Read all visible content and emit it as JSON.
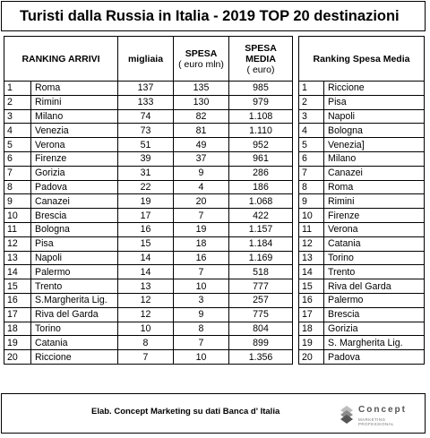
{
  "title": "Turisti dalla Russia in Italia - 2019  TOP 20 destinazioni",
  "left_table": {
    "headers": {
      "ranking": "RANKING ARRIVI",
      "migliaia": "migliaia",
      "spesa_l1": "SPESA",
      "spesa_l2": "( euro mln)",
      "media_l1": "SPESA",
      "media_l2": "MEDIA",
      "media_l3": "( euro)"
    },
    "rows": [
      {
        "rank": "1",
        "city": "Roma",
        "migliaia": "137",
        "spesa": "135",
        "media": "985"
      },
      {
        "rank": "2",
        "city": "Rimini",
        "migliaia": "133",
        "spesa": "130",
        "media": "979"
      },
      {
        "rank": "3",
        "city": "Milano",
        "migliaia": "74",
        "spesa": "82",
        "media": "1.108"
      },
      {
        "rank": "4",
        "city": "Venezia",
        "migliaia": "73",
        "spesa": "81",
        "media": "1.110"
      },
      {
        "rank": "5",
        "city": "Verona",
        "migliaia": "51",
        "spesa": "49",
        "media": "952"
      },
      {
        "rank": "6",
        "city": "Firenze",
        "migliaia": "39",
        "spesa": "37",
        "media": "961"
      },
      {
        "rank": "7",
        "city": "Gorizia",
        "migliaia": "31",
        "spesa": "9",
        "media": "286"
      },
      {
        "rank": "8",
        "city": "Padova",
        "migliaia": "22",
        "spesa": "4",
        "media": "186"
      },
      {
        "rank": "9",
        "city": "Canazei",
        "migliaia": "19",
        "spesa": "20",
        "media": "1.068"
      },
      {
        "rank": "10",
        "city": "Brescia",
        "migliaia": "17",
        "spesa": "7",
        "media": "422"
      },
      {
        "rank": "11",
        "city": "Bologna",
        "migliaia": "16",
        "spesa": "19",
        "media": "1.157"
      },
      {
        "rank": "12",
        "city": "Pisa",
        "migliaia": "15",
        "spesa": "18",
        "media": "1.184"
      },
      {
        "rank": "13",
        "city": "Napoli",
        "migliaia": "14",
        "spesa": "16",
        "media": "1.169"
      },
      {
        "rank": "14",
        "city": "Palermo",
        "migliaia": "14",
        "spesa": "7",
        "media": "518"
      },
      {
        "rank": "15",
        "city": "Trento",
        "migliaia": "13",
        "spesa": "10",
        "media": "777"
      },
      {
        "rank": "16",
        "city": "S.Margherita Lig.",
        "migliaia": "12",
        "spesa": "3",
        "media": "257"
      },
      {
        "rank": "17",
        "city": "Riva del Garda",
        "migliaia": "12",
        "spesa": "9",
        "media": "775"
      },
      {
        "rank": "18",
        "city": "Torino",
        "migliaia": "10",
        "spesa": "8",
        "media": "804"
      },
      {
        "rank": "19",
        "city": "Catania",
        "migliaia": "8",
        "spesa": "7",
        "media": "899"
      },
      {
        "rank": "20",
        "city": "Riccione",
        "migliaia": "7",
        "spesa": "10",
        "media": "1.356"
      }
    ]
  },
  "right_table": {
    "header": "Ranking Spesa Media",
    "rows": [
      {
        "rank": "1",
        "city": "Riccione"
      },
      {
        "rank": "2",
        "city": "Pisa"
      },
      {
        "rank": "3",
        "city": "Napoli"
      },
      {
        "rank": "4",
        "city": "Bologna"
      },
      {
        "rank": "5",
        "city": "Venezia]"
      },
      {
        "rank": "6",
        "city": "Milano"
      },
      {
        "rank": "7",
        "city": "Canazei"
      },
      {
        "rank": "8",
        "city": "Roma"
      },
      {
        "rank": "9",
        "city": "Rimini"
      },
      {
        "rank": "10",
        "city": "Firenze"
      },
      {
        "rank": "11",
        "city": "Verona"
      },
      {
        "rank": "12",
        "city": "Catania"
      },
      {
        "rank": "13",
        "city": "Torino"
      },
      {
        "rank": "14",
        "city": "Trento"
      },
      {
        "rank": "15",
        "city": "Riva del Garda"
      },
      {
        "rank": "16",
        "city": "Palermo"
      },
      {
        "rank": "17",
        "city": "Brescia"
      },
      {
        "rank": "18",
        "city": "Gorizia"
      },
      {
        "rank": "19",
        "city": "S. Margherita Lig."
      },
      {
        "rank": "20",
        "city": "Padova"
      }
    ]
  },
  "footer": {
    "source": "Elab. Concept Marketing  su dati Banca d' Italia",
    "logo_name": "Concept",
    "logo_sub": "MARKETING PROFESSIONAL"
  },
  "colors": {
    "border": "#000000",
    "background": "#ffffff",
    "logo_gray": "#666666"
  },
  "icons": {
    "logo": "concept-logo-icon"
  }
}
